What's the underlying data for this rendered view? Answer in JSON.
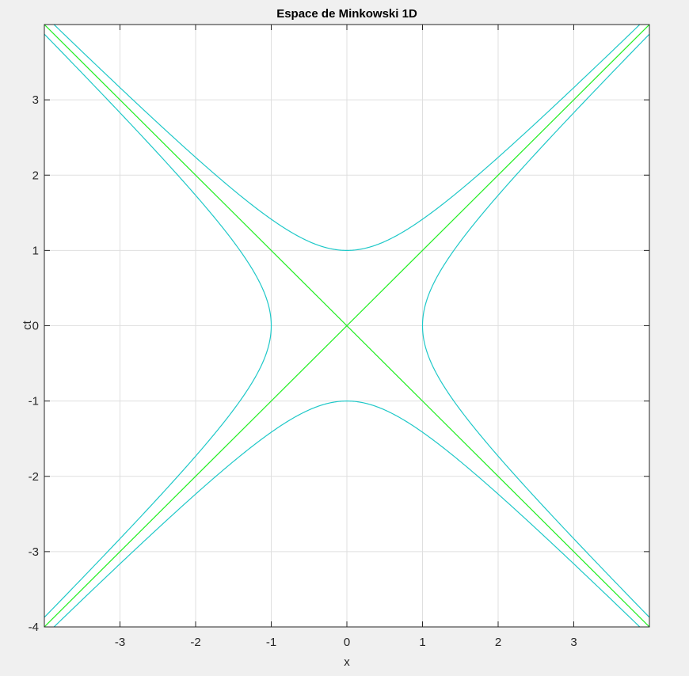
{
  "chart_data": {
    "type": "line",
    "title": "Espace de Minkowski 1D",
    "xlabel": "x",
    "ylabel": "ct",
    "xlim": [
      -4,
      4
    ],
    "ylim": [
      -4,
      4
    ],
    "grid": true,
    "x_ticks": [
      -3,
      -2,
      -1,
      0,
      1,
      2,
      3
    ],
    "x_tick_labels": [
      "-3",
      "-2",
      "-1",
      "0",
      "1",
      "2",
      "3"
    ],
    "y_ticks": [
      -4,
      -3,
      -2,
      -1,
      0,
      1,
      2,
      3
    ],
    "y_tick_labels": [
      "-4",
      "-3",
      "-2",
      "-1",
      "0",
      "1",
      "2",
      "3"
    ],
    "series": [
      {
        "kind": "light-line",
        "equation": "ct = x",
        "color": "#22ee22"
      },
      {
        "kind": "light-line",
        "equation": "ct = -x",
        "color": "#22ee22"
      },
      {
        "kind": "hyperbola",
        "equation": "ct^2 - x^2 = 1",
        "branch": "upper",
        "color": "#1ec8c8"
      },
      {
        "kind": "hyperbola",
        "equation": "ct^2 - x^2 = 1",
        "branch": "lower",
        "color": "#1ec8c8"
      },
      {
        "kind": "hyperbola",
        "equation": "x^2 - ct^2 = 1",
        "branch": "right",
        "color": "#1ec8c8"
      },
      {
        "kind": "hyperbola",
        "equation": "x^2 - ct^2 = 1",
        "branch": "left",
        "color": "#1ec8c8"
      }
    ]
  }
}
